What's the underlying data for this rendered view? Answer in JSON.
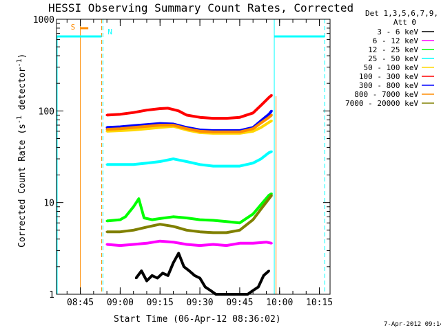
{
  "chart_data": {
    "type": "line",
    "title": "HESSI Observing Summary Count Rates, Corrected",
    "xlabel": "Start Time (06-Apr-12 08:36:02)",
    "ylabel_main": "Corrected Count Rate (s",
    "ylabel_sup1": "-1",
    "ylabel_mid": " detector",
    "ylabel_sup2": "-1",
    "ylabel_end": ")",
    "y_scale": "log",
    "ylim": [
      1,
      1000
    ],
    "xlim": [
      "08:36:02",
      "10:19:00"
    ],
    "x_ticks": [
      "08:45",
      "09:00",
      "09:15",
      "09:30",
      "09:45",
      "10:00",
      "10:15"
    ],
    "y_ticks": [
      "1",
      "10",
      "100",
      "1000"
    ],
    "legend_header": [
      "Det 1,3,5,6,7,9,",
      "Att 0"
    ],
    "legend_position": "right",
    "footer_date": "7-Apr-2012 09:14",
    "annotations": {
      "saa_label": "S",
      "night_label": "N"
    },
    "series": [
      {
        "name": "3 - 6 keV",
        "color": "#000000",
        "segments": [
          {
            "t": [
              "09:06",
              "09:08",
              "09:10",
              "09:12",
              "09:14",
              "09:16",
              "09:18",
              "09:20",
              "09:22",
              "09:24",
              "09:26",
              "09:28",
              "09:30",
              "09:32",
              "09:34",
              "09:36",
              "09:38",
              "09:40",
              "09:42",
              "09:44",
              "09:46",
              "09:48",
              "09:50",
              "09:52",
              "09:54",
              "09:56"
            ],
            "v": [
              1.5,
              1.8,
              1.4,
              1.6,
              1.5,
              1.7,
              1.6,
              2.2,
              2.8,
              2.0,
              1.8,
              1.6,
              1.5,
              1.2,
              1.1,
              1.0,
              1.0,
              1.0,
              1.0,
              1.0,
              1.0,
              1.0,
              1.1,
              1.2,
              1.6,
              1.8
            ]
          }
        ]
      },
      {
        "name": "6 - 12 keV",
        "color": "#ff00ff",
        "segments": [
          {
            "t": [
              "08:55",
              "09:00",
              "09:05",
              "09:10",
              "09:15",
              "09:20",
              "09:25",
              "09:30",
              "09:35",
              "09:40",
              "09:45",
              "09:50",
              "09:55",
              "09:57"
            ],
            "v": [
              3.5,
              3.4,
              3.5,
              3.6,
              3.8,
              3.7,
              3.5,
              3.4,
              3.5,
              3.4,
              3.6,
              3.6,
              3.7,
              3.6
            ]
          }
        ]
      },
      {
        "name": "12 - 25 keV",
        "color": "#00ff00",
        "segments": [
          {
            "t": [
              "08:55",
              "09:00",
              "09:02",
              "09:05",
              "09:07",
              "09:09",
              "09:12",
              "09:15",
              "09:20",
              "09:25",
              "09:30",
              "09:35",
              "09:40",
              "09:45",
              "09:50",
              "09:53",
              "09:56",
              "09:57"
            ],
            "v": [
              6.3,
              6.5,
              7.0,
              9.0,
              11.0,
              6.8,
              6.5,
              6.7,
              7.0,
              6.8,
              6.5,
              6.4,
              6.2,
              6.0,
              7.5,
              9.5,
              12.0,
              12.5
            ]
          }
        ]
      },
      {
        "name": "25 - 50 keV",
        "color": "#00ffff",
        "segments": [
          {
            "t": [
              "08:55",
              "09:00",
              "09:05",
              "09:10",
              "09:15",
              "09:20",
              "09:25",
              "09:30",
              "09:35",
              "09:40",
              "09:45",
              "09:50",
              "09:53",
              "09:56",
              "09:57"
            ],
            "v": [
              26,
              26,
              26,
              27,
              28,
              30,
              28,
              26,
              25,
              25,
              25,
              27,
              30,
              35,
              36
            ]
          }
        ]
      },
      {
        "name": "50 - 100 keV",
        "color": "#ffd700",
        "segments": [
          {
            "t": [
              "08:55",
              "09:00",
              "09:05",
              "09:10",
              "09:15",
              "09:20",
              "09:25",
              "09:30",
              "09:35",
              "09:40",
              "09:45",
              "09:50",
              "09:53",
              "09:56",
              "09:57"
            ],
            "v": [
              60,
              61,
              62,
              64,
              66,
              68,
              62,
              58,
              57,
              57,
              57,
              60,
              66,
              75,
              78
            ]
          }
        ]
      },
      {
        "name": "100 - 300 keV",
        "color": "#ff0000",
        "segments": [
          {
            "t": [
              "08:55",
              "09:00",
              "09:05",
              "09:10",
              "09:15",
              "09:18",
              "09:22",
              "09:25",
              "09:30",
              "09:35",
              "09:40",
              "09:45",
              "09:50",
              "09:53",
              "09:56",
              "09:57"
            ],
            "v": [
              90,
              92,
              96,
              102,
              106,
              107,
              100,
              90,
              85,
              83,
              83,
              85,
              95,
              115,
              140,
              148
            ]
          }
        ]
      },
      {
        "name": "300 - 800 keV",
        "color": "#0000ff",
        "segments": [
          {
            "t": [
              "08:55",
              "09:00",
              "09:05",
              "09:10",
              "09:15",
              "09:20",
              "09:25",
              "09:30",
              "09:35",
              "09:40",
              "09:45",
              "09:50",
              "09:53",
              "09:56",
              "09:57"
            ],
            "v": [
              66,
              67,
              69,
              71,
              73,
              72,
              66,
              62,
              61,
              61,
              61,
              66,
              78,
              92,
              100
            ]
          }
        ]
      },
      {
        "name": "800 - 7000 keV",
        "color": "#ff8c00",
        "segments": [
          {
            "t": [
              "08:55",
              "09:00",
              "09:05",
              "09:10",
              "09:15",
              "09:20",
              "09:25",
              "09:30",
              "09:35",
              "09:40",
              "09:45",
              "09:50",
              "09:53",
              "09:56",
              "09:57"
            ],
            "v": [
              63,
              64,
              66,
              68,
              70,
              70,
              64,
              60,
              59,
              59,
              59,
              64,
              74,
              85,
              90
            ]
          }
        ]
      },
      {
        "name": "7000 - 20000 keV",
        "color": "#808000",
        "segments": [
          {
            "t": [
              "08:55",
              "09:00",
              "09:05",
              "09:10",
              "09:15",
              "09:20",
              "09:25",
              "09:30",
              "09:35",
              "09:40",
              "09:45",
              "09:50",
              "09:53",
              "09:56",
              "09:57"
            ],
            "v": [
              4.8,
              4.8,
              5.0,
              5.4,
              5.8,
              5.5,
              5.0,
              4.8,
              4.7,
              4.7,
              5.0,
              6.5,
              8.5,
              11,
              12
            ]
          }
        ]
      }
    ],
    "markers": {
      "attenuator_level": 650,
      "attenuator_segments": [
        [
          "08:36:02",
          "08:53"
        ],
        [
          "09:58",
          "10:17"
        ]
      ],
      "saa_lines": [
        "08:45",
        "08:48",
        "08:53"
      ],
      "night_lines": [
        "08:53:30",
        "09:58",
        "10:17"
      ]
    }
  }
}
